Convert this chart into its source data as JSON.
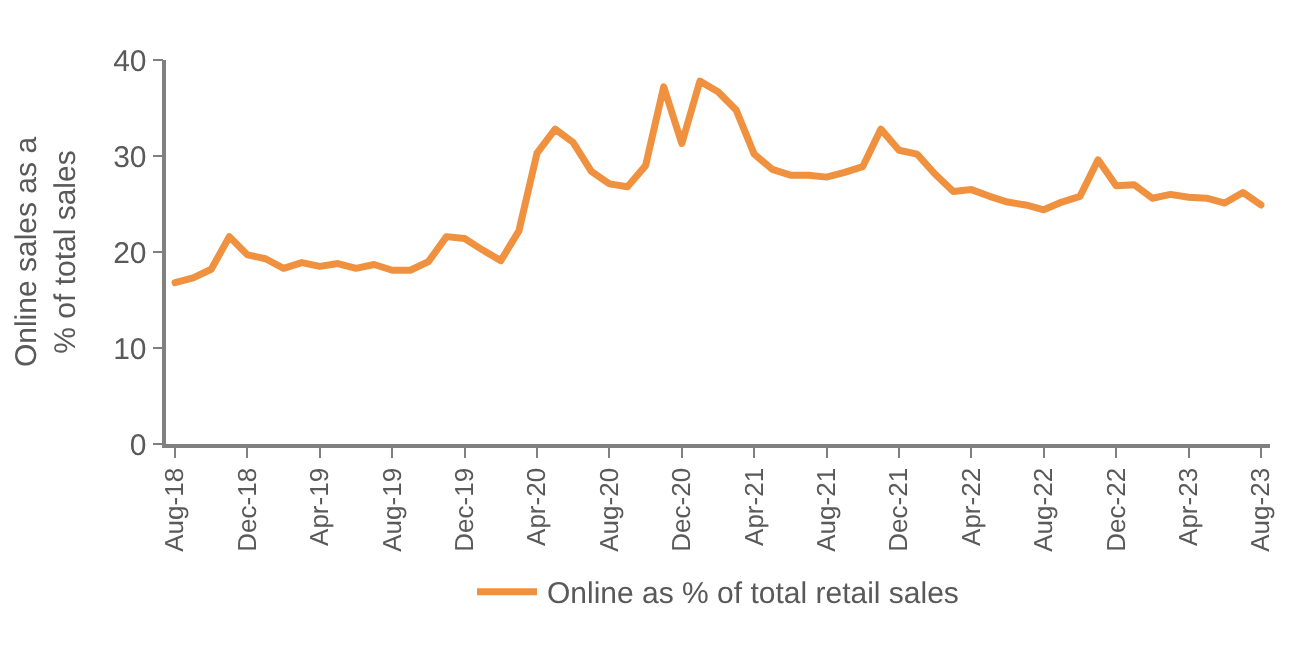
{
  "chart_data": {
    "type": "line",
    "ylabel": "Online sales as a % of total sales",
    "categories": [
      "Aug-18",
      null,
      null,
      null,
      "Dec-18",
      null,
      null,
      null,
      "Apr-19",
      null,
      null,
      null,
      "Aug-19",
      null,
      null,
      null,
      "Dec-19",
      null,
      null,
      null,
      "Apr-20",
      null,
      null,
      null,
      "Aug-20",
      null,
      null,
      null,
      "Dec-20",
      null,
      null,
      null,
      "Apr-21",
      null,
      null,
      null,
      "Aug-21",
      null,
      null,
      null,
      "Dec-21",
      null,
      null,
      null,
      "Apr-22",
      null,
      null,
      null,
      "Aug-22",
      null,
      null,
      null,
      "Dec-22",
      null,
      null,
      null,
      "Apr-23",
      null,
      null,
      null,
      "Aug-23"
    ],
    "series": [
      {
        "name": "Online as % of total retail sales",
        "color": "#f0913f",
        "values": [
          16.8,
          17.3,
          18.2,
          21.6,
          19.7,
          19.3,
          18.3,
          18.9,
          18.5,
          18.8,
          18.3,
          18.7,
          18.1,
          18.1,
          19.0,
          21.6,
          21.4,
          20.2,
          19.1,
          22.2,
          30.3,
          32.8,
          31.4,
          28.4,
          27.1,
          26.8,
          29.0,
          37.2,
          31.3,
          37.8,
          36.7,
          34.8,
          30.2,
          28.6,
          28.0,
          28.0,
          27.8,
          28.3,
          28.9,
          32.8,
          30.6,
          30.2,
          28.1,
          26.3,
          26.5,
          25.8,
          25.2,
          24.9,
          24.4,
          25.2,
          25.8,
          29.6,
          26.9,
          27.0,
          25.6,
          26.0,
          25.7,
          25.6,
          25.1,
          26.2,
          24.9
        ]
      }
    ],
    "ylim": [
      0,
      40
    ],
    "yticks": [
      0,
      10,
      20,
      30,
      40
    ],
    "legend": "bottom",
    "marker": "none",
    "line_style": "solid"
  }
}
